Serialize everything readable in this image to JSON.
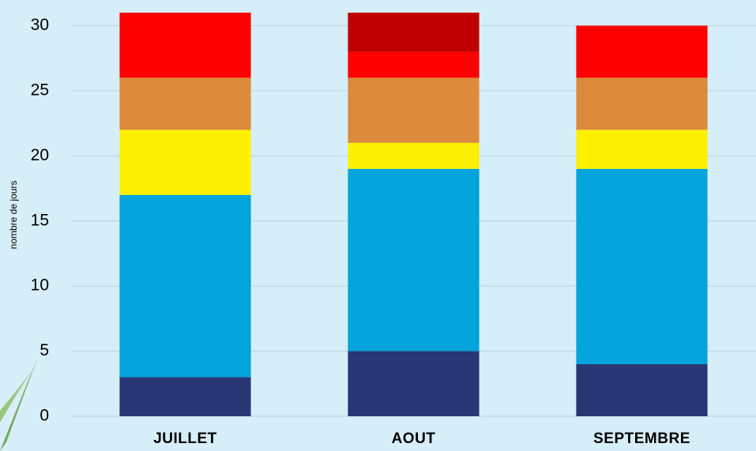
{
  "chart_data": {
    "type": "stacked_bar",
    "y_label": "nombre de jours",
    "categories": [
      "JUILLET",
      "AOUT",
      "SEPTEMBRE"
    ],
    "series": [
      {
        "color": "#283673",
        "values": [
          3,
          5,
          4
        ]
      },
      {
        "color": "#03a3db",
        "values": [
          14,
          14,
          15
        ]
      },
      {
        "color": "#fdf000",
        "values": [
          5,
          2,
          3
        ]
      },
      {
        "color": "#dd8a3c",
        "values": [
          4,
          5,
          4
        ]
      },
      {
        "color": "#ff0000",
        "values": [
          5,
          2,
          4
        ]
      },
      {
        "color": "#c00000",
        "values": [
          0,
          3,
          0
        ]
      }
    ],
    "ylim": [
      0,
      31
    ],
    "yticks": [
      0,
      5,
      10,
      15,
      20,
      25,
      30
    ],
    "grid": true
  }
}
